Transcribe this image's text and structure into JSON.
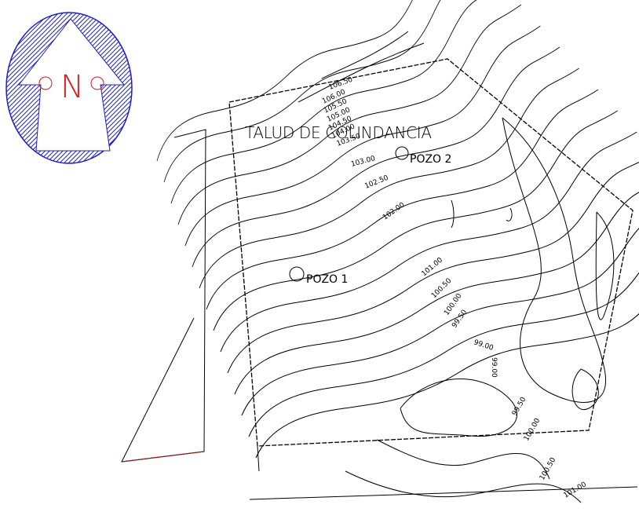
{
  "compass": {
    "label": "N"
  },
  "labels": {
    "title": "TALUD DE COLINDANCIA",
    "wells": [
      "POZO 1",
      "POZO 2"
    ]
  },
  "contour_labels": [
    "106.50",
    "106.00",
    "105.50",
    "105.00",
    "104.50",
    "104.00",
    "103.50",
    "103.00",
    "102.50",
    "102.00",
    "101.00",
    "100.50",
    "100.00",
    "99.50",
    "99.00",
    "99.00",
    "99.50",
    "100.00",
    "100.50",
    "101.00"
  ]
}
